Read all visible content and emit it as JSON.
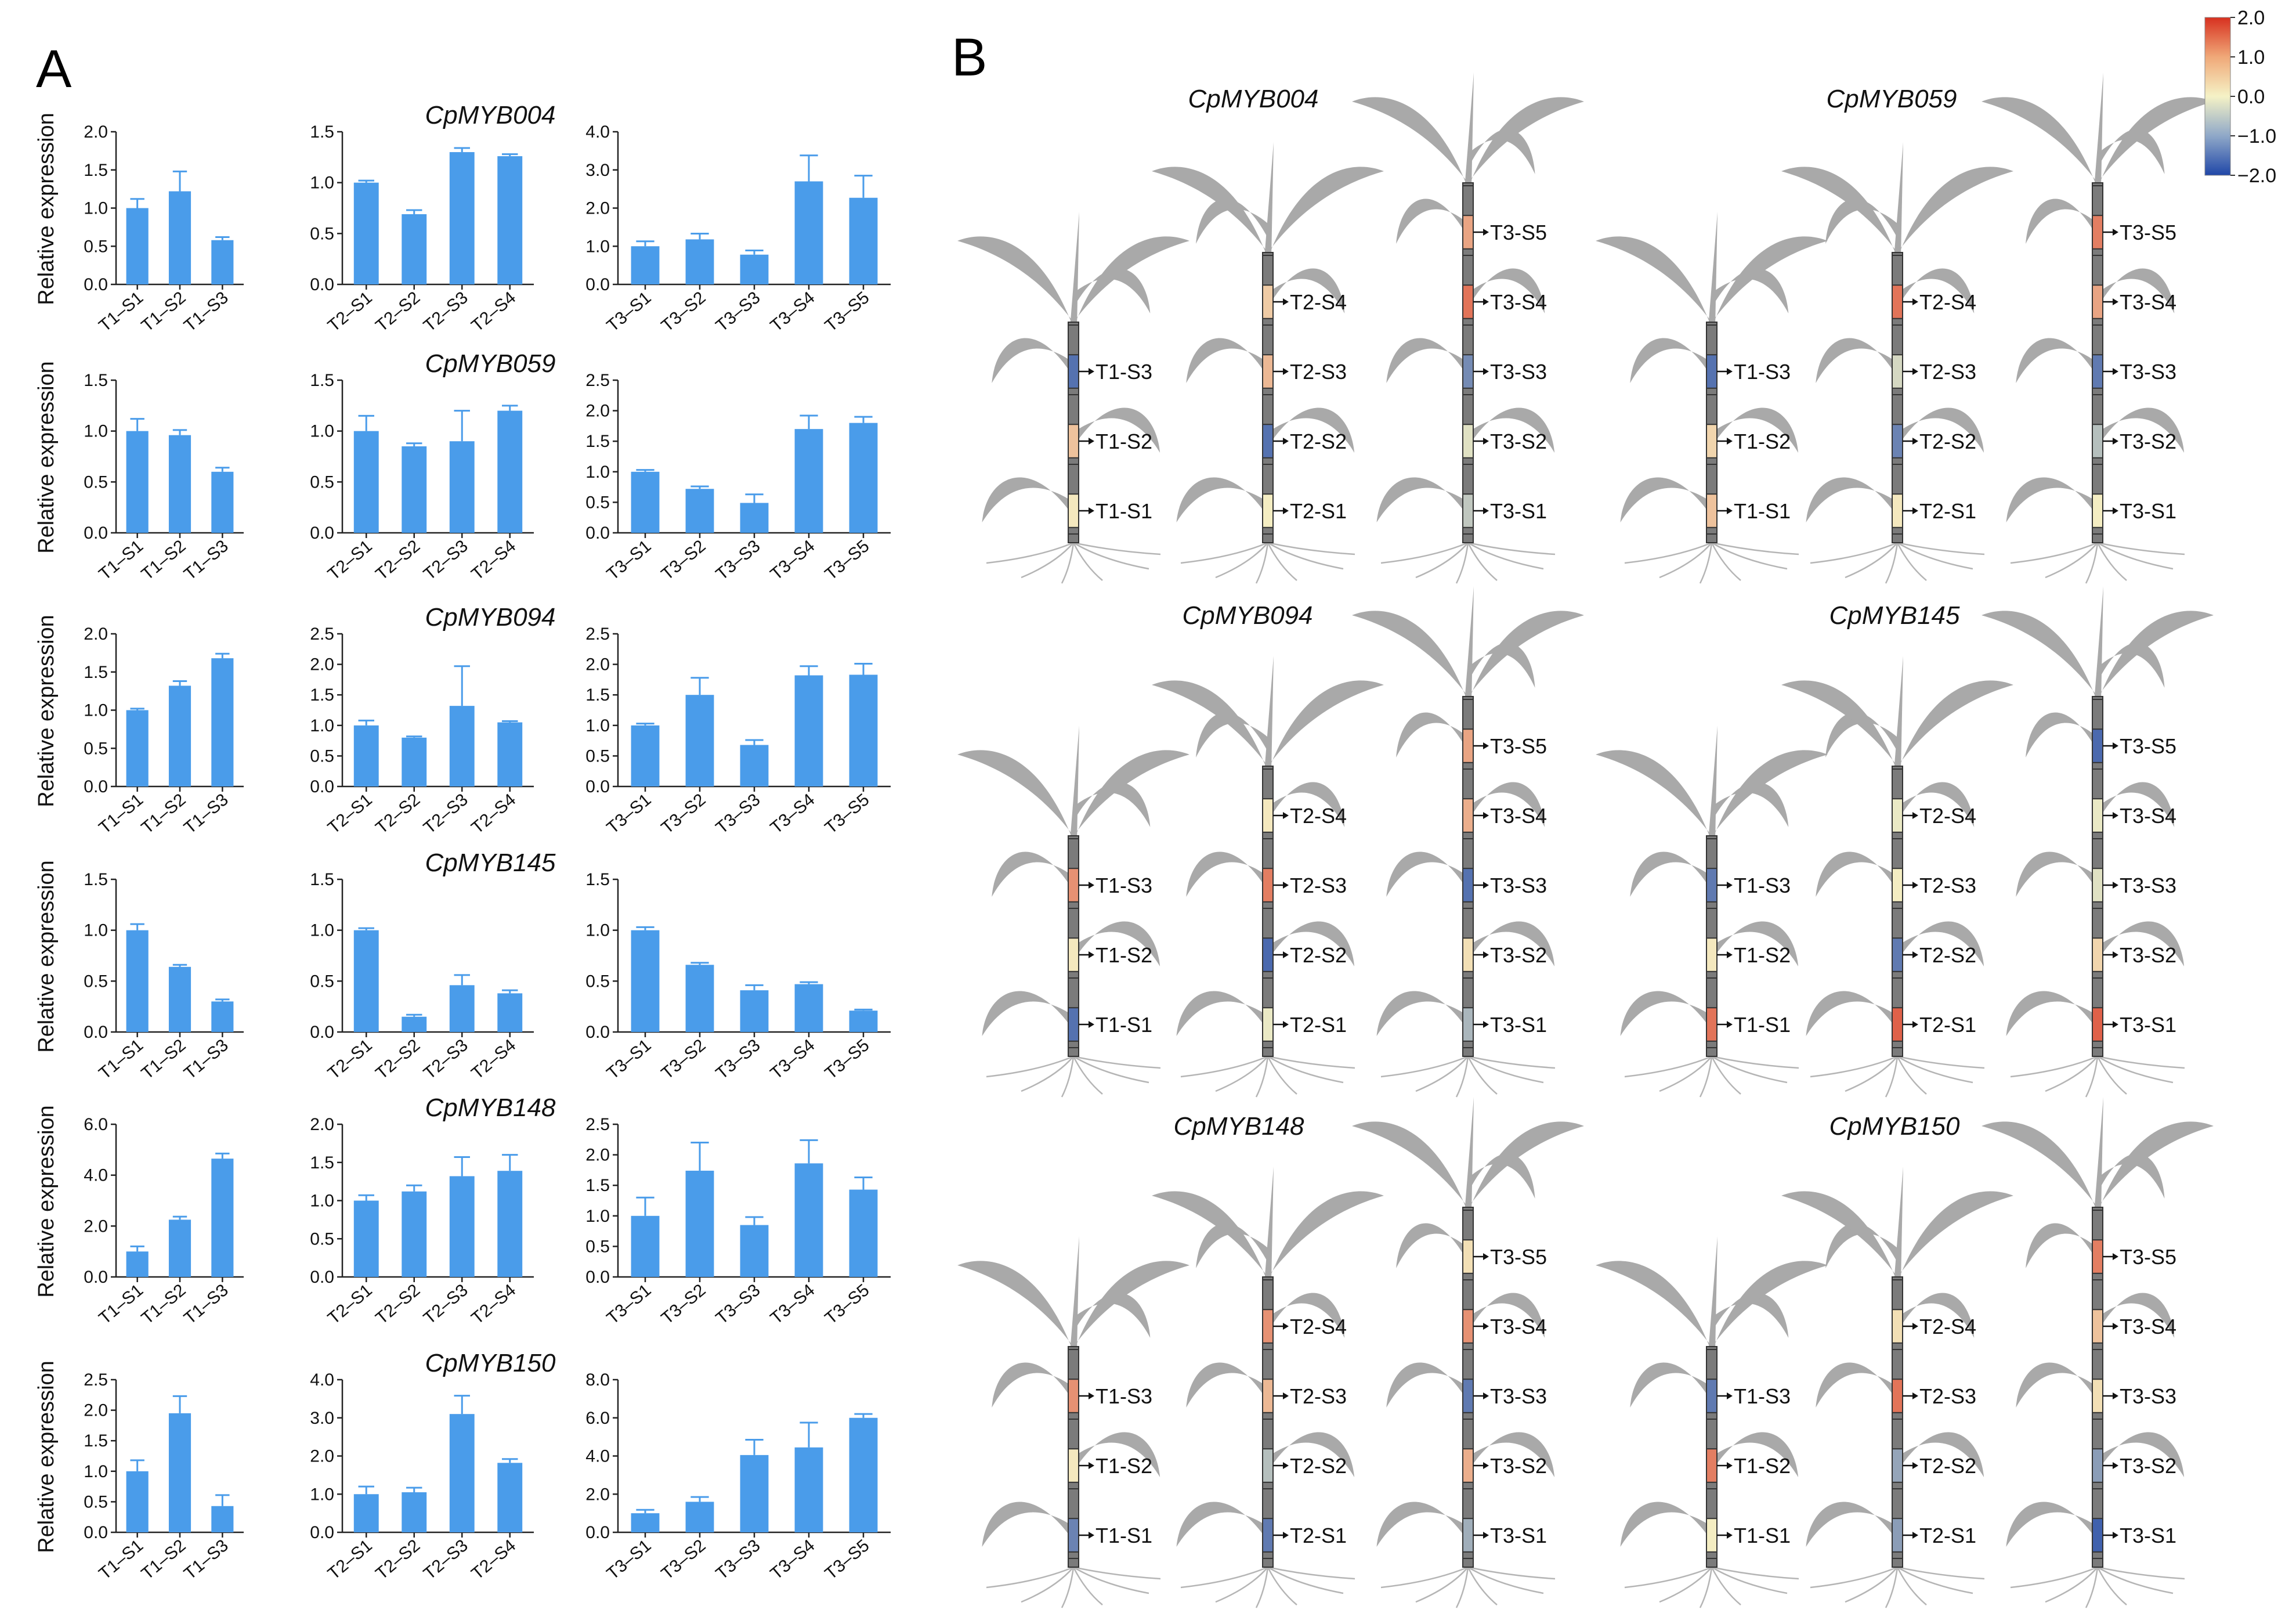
{
  "panel_labels": {
    "a": "A",
    "b": "B"
  },
  "y_axis_title": "Relative expression",
  "colors": {
    "bar": "#4a9cea",
    "plant": "#a9a9a9",
    "stem": "#7b7b7b",
    "high": "#d7301f",
    "mid": "#f5f2c6",
    "low": "#2047a8"
  },
  "colorbar": {
    "ticks": [
      "2.0",
      "1.0",
      "0.0",
      "−1.0",
      "−2.0"
    ],
    "range": [
      -2,
      2
    ]
  },
  "chart_data": [
    {
      "type": "bar",
      "gene": "",
      "categories": [
        "T1–S1",
        "T1–S2",
        "T1–S3"
      ],
      "values": [
        1.0,
        1.22,
        0.58
      ],
      "errors": [
        0.12,
        0.26,
        0.04
      ],
      "ylim": [
        0,
        2.0
      ],
      "yticks": [
        "0.0",
        "0.5",
        "1.0",
        "1.5",
        "2.0"
      ]
    },
    {
      "type": "bar",
      "gene": "CpMYB004",
      "categories": [
        "T2–S1",
        "T2–S2",
        "T2–S3",
        "T2–S4"
      ],
      "values": [
        1.0,
        0.69,
        1.3,
        1.26
      ],
      "errors": [
        0.02,
        0.04,
        0.04,
        0.02
      ],
      "ylim": [
        0,
        1.5
      ],
      "yticks": [
        "0.0",
        "0.5",
        "1.0",
        "1.5"
      ]
    },
    {
      "type": "bar",
      "gene": "",
      "categories": [
        "T3–S1",
        "T3–S2",
        "T3–S3",
        "T3–S4",
        "T3–S5"
      ],
      "values": [
        1.0,
        1.18,
        0.78,
        2.7,
        2.27
      ],
      "errors": [
        0.13,
        0.15,
        0.11,
        0.68,
        0.58
      ],
      "ylim": [
        0,
        4.0
      ],
      "yticks": [
        "0.0",
        "1.0",
        "2.0",
        "3.0",
        "4.0"
      ]
    },
    {
      "type": "bar",
      "gene": "",
      "categories": [
        "T1–S1",
        "T1–S2",
        "T1–S3"
      ],
      "values": [
        1.0,
        0.96,
        0.6
      ],
      "errors": [
        0.12,
        0.05,
        0.04
      ],
      "ylim": [
        0,
        1.5
      ],
      "yticks": [
        "0.0",
        "0.5",
        "1.0",
        "1.5"
      ]
    },
    {
      "type": "bar",
      "gene": "CpMYB059",
      "categories": [
        "T2–S1",
        "T2–S2",
        "T2–S3",
        "T2–S4"
      ],
      "values": [
        1.0,
        0.85,
        0.9,
        1.2
      ],
      "errors": [
        0.15,
        0.03,
        0.3,
        0.05
      ],
      "ylim": [
        0,
        1.5
      ],
      "yticks": [
        "0.0",
        "0.5",
        "1.0",
        "1.5"
      ]
    },
    {
      "type": "bar",
      "gene": "",
      "categories": [
        "T3–S1",
        "T3–S2",
        "T3–S3",
        "T3–S4",
        "T3–S5"
      ],
      "values": [
        1.0,
        0.72,
        0.49,
        1.7,
        1.8
      ],
      "errors": [
        0.03,
        0.04,
        0.14,
        0.22,
        0.1
      ],
      "ylim": [
        0,
        2.5
      ],
      "yticks": [
        "0.0",
        "0.5",
        "1.0",
        "1.5",
        "2.0",
        "2.5"
      ]
    },
    {
      "type": "bar",
      "gene": "",
      "categories": [
        "T1–S1",
        "T1–S2",
        "T1–S3"
      ],
      "values": [
        1.0,
        1.32,
        1.68
      ],
      "errors": [
        0.02,
        0.06,
        0.06
      ],
      "ylim": [
        0,
        2.0
      ],
      "yticks": [
        "0.0",
        "0.5",
        "1.0",
        "1.5",
        "2.0"
      ]
    },
    {
      "type": "bar",
      "gene": "CpMYB094",
      "categories": [
        "T2–S1",
        "T2–S2",
        "T2–S3",
        "T2–S4"
      ],
      "values": [
        1.0,
        0.8,
        1.32,
        1.05
      ],
      "errors": [
        0.08,
        0.02,
        0.65,
        0.02
      ],
      "ylim": [
        0,
        2.5
      ],
      "yticks": [
        "0.0",
        "0.5",
        "1.0",
        "1.5",
        "2.0",
        "2.5"
      ]
    },
    {
      "type": "bar",
      "gene": "",
      "categories": [
        "T3–S1",
        "T3–S2",
        "T3–S3",
        "T3–S4",
        "T3–S5"
      ],
      "values": [
        1.0,
        1.5,
        0.68,
        1.82,
        1.83
      ],
      "errors": [
        0.03,
        0.28,
        0.08,
        0.15,
        0.18
      ],
      "ylim": [
        0,
        2.5
      ],
      "yticks": [
        "0.0",
        "0.5",
        "1.0",
        "1.5",
        "2.0",
        "2.5"
      ]
    },
    {
      "type": "bar",
      "gene": "",
      "categories": [
        "T1–S1",
        "T1–S2",
        "T1–S3"
      ],
      "values": [
        1.0,
        0.64,
        0.3
      ],
      "errors": [
        0.06,
        0.02,
        0.02
      ],
      "ylim": [
        0,
        1.5
      ],
      "yticks": [
        "0.0",
        "0.5",
        "1.0",
        "1.5"
      ]
    },
    {
      "type": "bar",
      "gene": "CpMYB145",
      "categories": [
        "T2–S1",
        "T2–S2",
        "T2–S3",
        "T2–S4"
      ],
      "values": [
        1.0,
        0.15,
        0.46,
        0.38
      ],
      "errors": [
        0.02,
        0.02,
        0.1,
        0.03
      ],
      "ylim": [
        0,
        1.5
      ],
      "yticks": [
        "0.0",
        "0.5",
        "1.0",
        "1.5"
      ]
    },
    {
      "type": "bar",
      "gene": "",
      "categories": [
        "T3–S1",
        "T3–S2",
        "T3–S3",
        "T3–S4",
        "T3–S5"
      ],
      "values": [
        1.0,
        0.66,
        0.41,
        0.47,
        0.21
      ],
      "errors": [
        0.03,
        0.02,
        0.05,
        0.02,
        0.01
      ],
      "ylim": [
        0,
        1.5
      ],
      "yticks": [
        "0.0",
        "0.5",
        "1.0",
        "1.5"
      ]
    },
    {
      "type": "bar",
      "gene": "",
      "categories": [
        "T1–S1",
        "T1–S2",
        "T1–S3"
      ],
      "values": [
        1.0,
        2.25,
        4.65
      ],
      "errors": [
        0.2,
        0.12,
        0.2
      ],
      "ylim": [
        0,
        6.0
      ],
      "yticks": [
        "0.0",
        "2.0",
        "4.0",
        "6.0"
      ]
    },
    {
      "type": "bar",
      "gene": "CpMYB148",
      "categories": [
        "T2–S1",
        "T2–S2",
        "T2–S3",
        "T2–S4"
      ],
      "values": [
        1.0,
        1.12,
        1.32,
        1.39
      ],
      "errors": [
        0.07,
        0.08,
        0.25,
        0.21
      ],
      "ylim": [
        0,
        2.0
      ],
      "yticks": [
        "0.0",
        "0.5",
        "1.0",
        "1.5",
        "2.0"
      ]
    },
    {
      "type": "bar",
      "gene": "",
      "categories": [
        "T3–S1",
        "T3–S2",
        "T3–S3",
        "T3–S4",
        "T3–S5"
      ],
      "values": [
        1.0,
        1.74,
        0.85,
        1.86,
        1.43
      ],
      "errors": [
        0.3,
        0.46,
        0.13,
        0.38,
        0.2
      ],
      "ylim": [
        0,
        2.5
      ],
      "yticks": [
        "0.0",
        "0.5",
        "1.0",
        "1.5",
        "2.0",
        "2.5"
      ]
    },
    {
      "type": "bar",
      "gene": "",
      "categories": [
        "T1–S1",
        "T1–S2",
        "T1–S3"
      ],
      "values": [
        1.0,
        1.95,
        0.43
      ],
      "errors": [
        0.18,
        0.28,
        0.18
      ],
      "ylim": [
        0,
        2.5
      ],
      "yticks": [
        "0.0",
        "0.5",
        "1.0",
        "1.5",
        "2.0",
        "2.5"
      ]
    },
    {
      "type": "bar",
      "gene": "CpMYB150",
      "categories": [
        "T2–S1",
        "T2–S2",
        "T2–S3",
        "T2–S4"
      ],
      "values": [
        1.0,
        1.05,
        3.1,
        1.82
      ],
      "errors": [
        0.2,
        0.12,
        0.48,
        0.1
      ],
      "ylim": [
        0,
        4.0
      ],
      "yticks": [
        "0.0",
        "1.0",
        "2.0",
        "3.0",
        "4.0"
      ]
    },
    {
      "type": "bar",
      "gene": "",
      "categories": [
        "T3–S1",
        "T3–S2",
        "T3–S3",
        "T3–S4",
        "T3–S5"
      ],
      "values": [
        1.0,
        1.6,
        4.05,
        4.45,
        6.0
      ],
      "errors": [
        0.18,
        0.25,
        0.8,
        1.3,
        0.2
      ],
      "ylim": [
        0,
        8.0
      ],
      "yticks": [
        "0.0",
        "2.0",
        "4.0",
        "6.0",
        "8.0"
      ]
    }
  ],
  "plant_diagram": {
    "genes": [
      {
        "gene": "CpMYB004",
        "plants": [
          {
            "labels": [
              "T1-S3",
              "T1-S2",
              "T1-S1"
            ],
            "values": [
              -1.5,
              0.5,
              0.1
            ]
          },
          {
            "labels": [
              "T2-S4",
              "T2-S3",
              "T2-S2",
              "T2-S1"
            ],
            "values": [
              0.4,
              0.6,
              -1.5,
              0.05
            ]
          },
          {
            "labels": [
              "T3-S5",
              "T3-S4",
              "T3-S3",
              "T3-S2",
              "T3-S1"
            ],
            "values": [
              0.8,
              1.3,
              -1.2,
              -0.2,
              -0.5
            ]
          }
        ]
      },
      {
        "gene": "CpMYB059",
        "plants": [
          {
            "labels": [
              "T1-S3",
              "T1-S2",
              "T1-S1"
            ],
            "values": [
              -1.5,
              0.3,
              0.5
            ]
          },
          {
            "labels": [
              "T2-S4",
              "T2-S3",
              "T2-S2",
              "T2-S1"
            ],
            "values": [
              1.3,
              -0.3,
              -1.3,
              0.1
            ]
          },
          {
            "labels": [
              "T3-S5",
              "T3-S4",
              "T3-S3",
              "T3-S2",
              "T3-S1"
            ],
            "values": [
              1.2,
              0.8,
              -1.4,
              -0.6,
              0.05
            ]
          }
        ]
      },
      {
        "gene": "CpMYB094",
        "plants": [
          {
            "labels": [
              "T1-S3",
              "T1-S2",
              "T1-S1"
            ],
            "values": [
              1.0,
              0.1,
              -1.5
            ]
          },
          {
            "labels": [
              "T2-S4",
              "T2-S3",
              "T2-S2",
              "T2-S1"
            ],
            "values": [
              0.1,
              1.2,
              -1.6,
              -0.1
            ]
          },
          {
            "labels": [
              "T3-S5",
              "T3-S4",
              "T3-S3",
              "T3-S2",
              "T3-S1"
            ],
            "values": [
              0.8,
              0.7,
              -1.5,
              0.2,
              -0.7
            ]
          }
        ]
      },
      {
        "gene": "CpMYB145",
        "plants": [
          {
            "labels": [
              "T1-S3",
              "T1-S2",
              "T1-S1"
            ],
            "values": [
              -1.4,
              0.1,
              1.3
            ]
          },
          {
            "labels": [
              "T2-S4",
              "T2-S3",
              "T2-S2",
              "T2-S1"
            ],
            "values": [
              -0.1,
              0.05,
              -1.4,
              1.5
            ]
          },
          {
            "labels": [
              "T3-S5",
              "T3-S4",
              "T3-S3",
              "T3-S2",
              "T3-S1"
            ],
            "values": [
              -1.6,
              -0.1,
              -0.2,
              0.3,
              1.5
            ]
          }
        ]
      },
      {
        "gene": "CpMYB148",
        "plants": [
          {
            "labels": [
              "T1-S3",
              "T1-S2",
              "T1-S1"
            ],
            "values": [
              1.0,
              0.1,
              -1.3
            ]
          },
          {
            "labels": [
              "T2-S4",
              "T2-S3",
              "T2-S2",
              "T2-S1"
            ],
            "values": [
              1.0,
              0.6,
              -0.6,
              -1.4
            ]
          },
          {
            "labels": [
              "T3-S5",
              "T3-S4",
              "T3-S3",
              "T3-S2",
              "T3-S1"
            ],
            "values": [
              0.2,
              1.0,
              -1.4,
              0.7,
              -0.8
            ]
          }
        ]
      },
      {
        "gene": "CpMYB150",
        "plants": [
          {
            "labels": [
              "T1-S3",
              "T1-S2",
              "T1-S1"
            ],
            "values": [
              -1.4,
              1.2,
              0.05
            ]
          },
          {
            "labels": [
              "T2-S4",
              "T2-S3",
              "T2-S2",
              "T2-S1"
            ],
            "values": [
              0.2,
              1.3,
              -0.9,
              -1.0
            ]
          },
          {
            "labels": [
              "T3-S5",
              "T3-S4",
              "T3-S3",
              "T3-S2",
              "T3-S1"
            ],
            "values": [
              1.2,
              0.5,
              0.2,
              -1.0,
              -1.7
            ]
          }
        ]
      }
    ]
  }
}
